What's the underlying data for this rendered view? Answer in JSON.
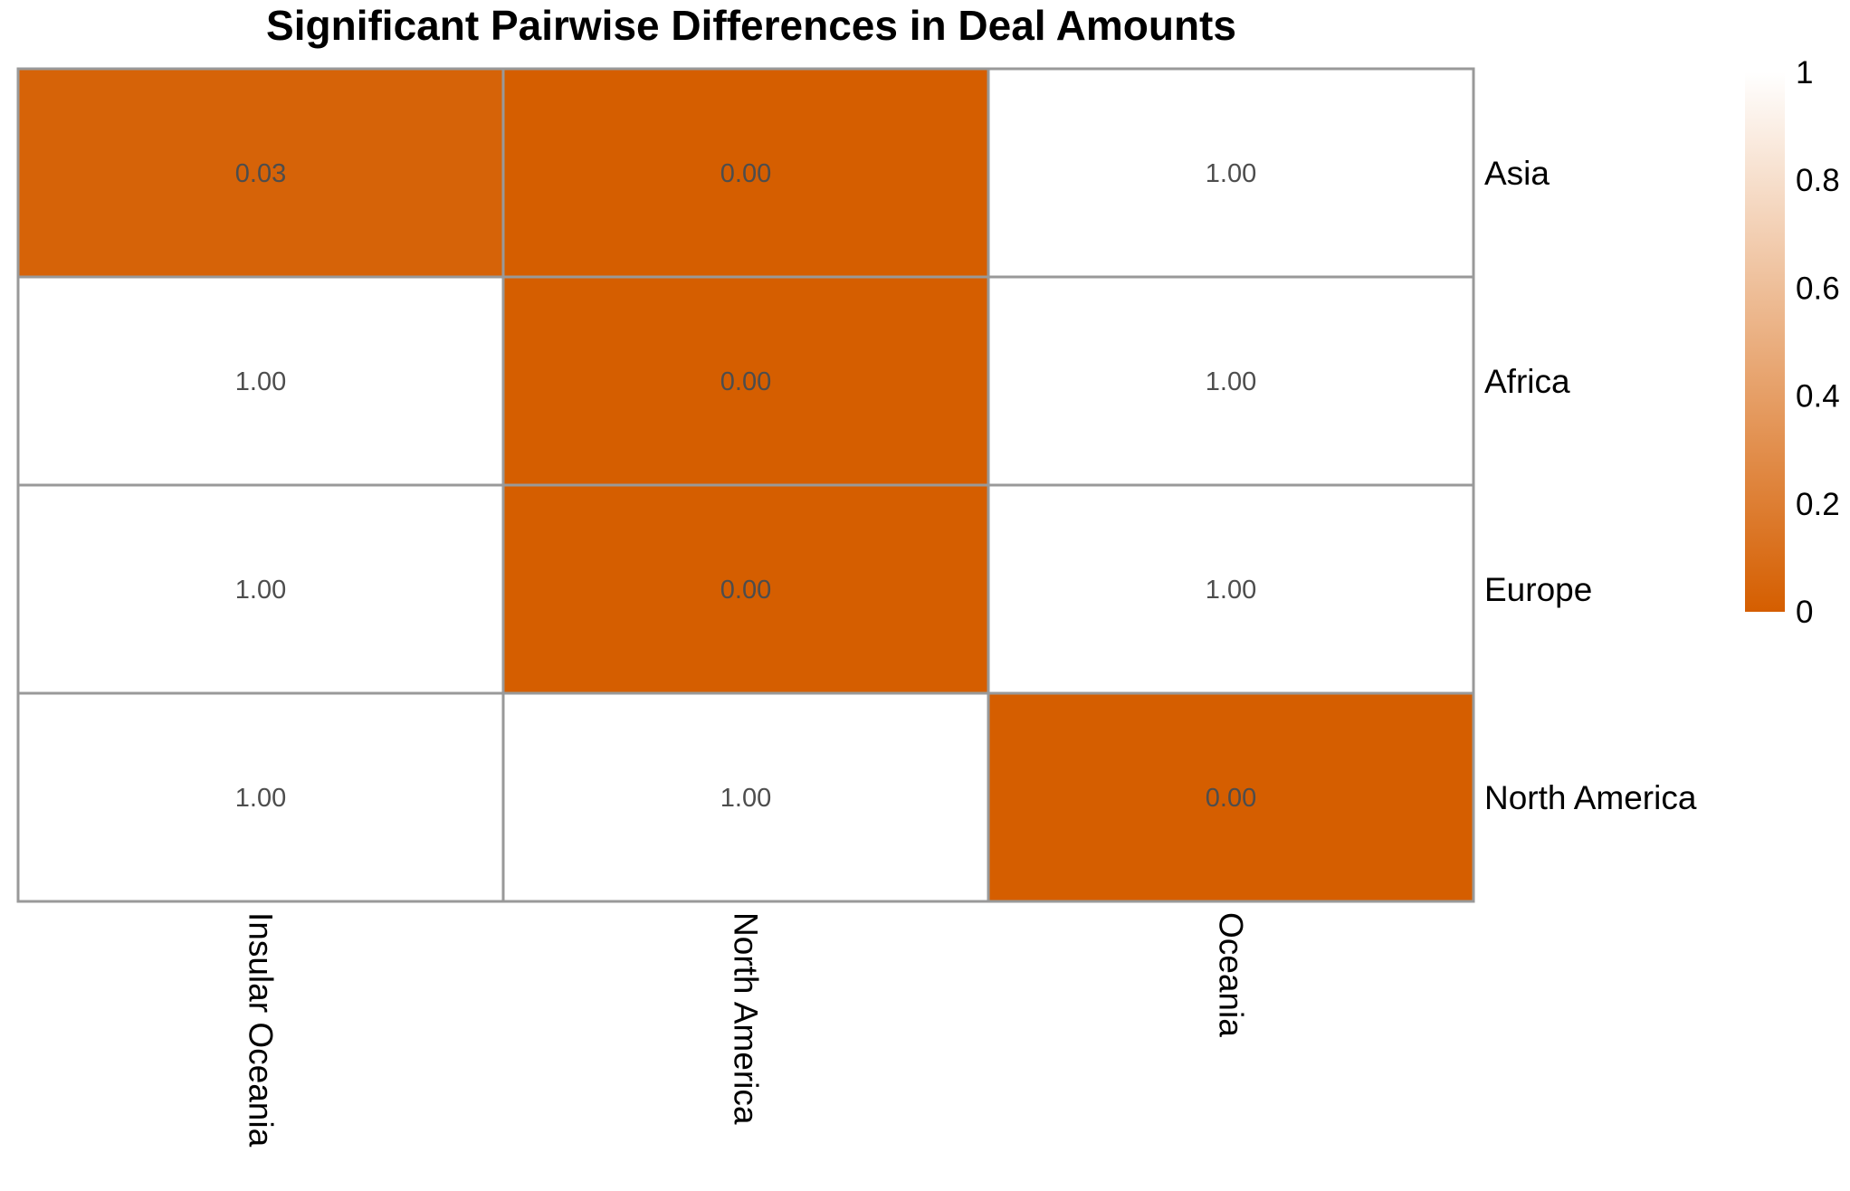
{
  "chart_data": {
    "type": "heatmap",
    "title": "Significant Pairwise Differences in Deal Amounts",
    "x_categories": [
      "Insular Oceania",
      "North America",
      "Oceania"
    ],
    "y_categories": [
      "Asia",
      "Africa",
      "Europe",
      "North America"
    ],
    "values": [
      [
        0.03,
        0.0,
        1.0
      ],
      [
        1.0,
        0.0,
        1.0
      ],
      [
        1.0,
        0.0,
        1.0
      ],
      [
        1.0,
        1.0,
        0.0
      ]
    ],
    "value_labels": [
      [
        "0.03",
        "0.00",
        "1.00"
      ],
      [
        "1.00",
        "0.00",
        "1.00"
      ],
      [
        "1.00",
        "0.00",
        "1.00"
      ],
      [
        "1.00",
        "1.00",
        "0.00"
      ]
    ],
    "color_scale": {
      "low": 0,
      "high": 1,
      "low_color": "#d55e00",
      "high_color": "#ffffff"
    },
    "legend": {
      "position": "right",
      "ticks": [
        0,
        0.2,
        0.4,
        0.6,
        0.8,
        1
      ],
      "tick_labels": [
        "0",
        "0.2",
        "0.4",
        "0.6",
        "0.8",
        "1"
      ]
    },
    "grid_color": "#999999",
    "grid": false
  }
}
